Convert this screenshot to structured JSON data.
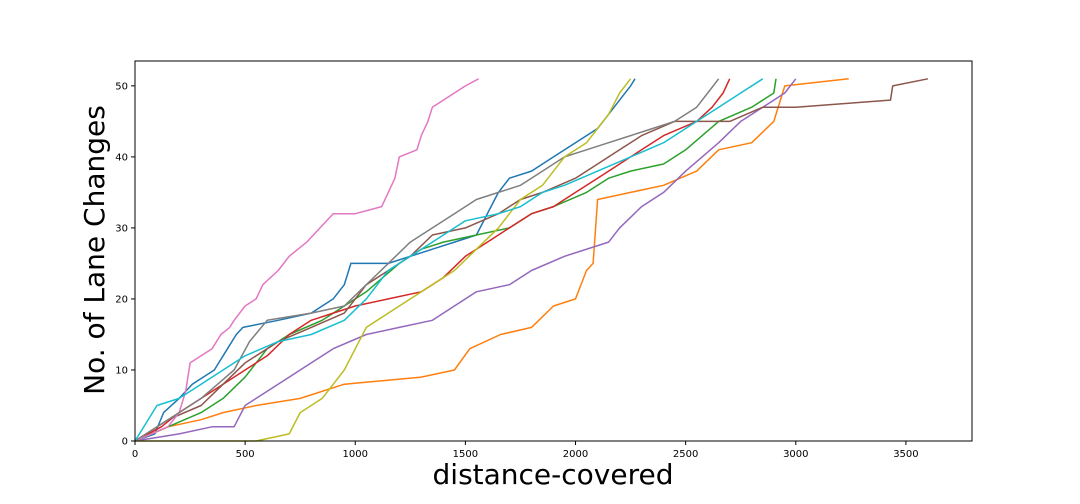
{
  "chart_data": {
    "type": "line",
    "title": "",
    "xlabel": "distance-covered",
    "ylabel": "No. of Lane Changes",
    "xlim": [
      0,
      3800
    ],
    "ylim": [
      0,
      53.5
    ],
    "xticks": [
      0,
      500,
      1000,
      1500,
      2000,
      2500,
      3000,
      3500
    ],
    "yticks": [
      0,
      10,
      20,
      30,
      40,
      50
    ],
    "grid": false,
    "legend": "none",
    "series": [
      {
        "color": "#1f77b4",
        "points": [
          [
            0,
            0
          ],
          [
            90,
            1
          ],
          [
            130,
            4
          ],
          [
            200,
            6
          ],
          [
            260,
            8
          ],
          [
            310,
            9
          ],
          [
            360,
            10
          ],
          [
            420,
            13
          ],
          [
            460,
            15
          ],
          [
            490,
            16
          ],
          [
            650,
            17
          ],
          [
            800,
            18
          ],
          [
            900,
            20
          ],
          [
            950,
            22
          ],
          [
            980,
            25
          ],
          [
            1150,
            25
          ],
          [
            1250,
            26
          ],
          [
            1350,
            27
          ],
          [
            1450,
            28
          ],
          [
            1550,
            29
          ],
          [
            1650,
            35
          ],
          [
            1700,
            37
          ],
          [
            1800,
            38
          ],
          [
            1900,
            40
          ],
          [
            2000,
            42
          ],
          [
            2100,
            44
          ],
          [
            2150,
            46
          ],
          [
            2200,
            48
          ],
          [
            2250,
            50
          ],
          [
            2270,
            51
          ]
        ]
      },
      {
        "color": "#ff7f0e",
        "points": [
          [
            0,
            0
          ],
          [
            150,
            2
          ],
          [
            300,
            3
          ],
          [
            400,
            4
          ],
          [
            550,
            5
          ],
          [
            750,
            6
          ],
          [
            950,
            8
          ],
          [
            1300,
            9
          ],
          [
            1450,
            10
          ],
          [
            1520,
            13
          ],
          [
            1660,
            15
          ],
          [
            1800,
            16
          ],
          [
            1900,
            19
          ],
          [
            2000,
            20
          ],
          [
            2050,
            24
          ],
          [
            2080,
            25
          ],
          [
            2100,
            34
          ],
          [
            2250,
            35
          ],
          [
            2400,
            36
          ],
          [
            2550,
            38
          ],
          [
            2650,
            41
          ],
          [
            2800,
            42
          ],
          [
            2900,
            45
          ],
          [
            2950,
            50
          ],
          [
            3240,
            51
          ]
        ]
      },
      {
        "color": "#2ca02c",
        "points": [
          [
            0,
            0
          ],
          [
            150,
            2
          ],
          [
            300,
            4
          ],
          [
            400,
            6
          ],
          [
            500,
            9
          ],
          [
            600,
            13
          ],
          [
            700,
            15
          ],
          [
            850,
            17
          ],
          [
            950,
            19
          ],
          [
            1050,
            21
          ],
          [
            1200,
            25
          ],
          [
            1300,
            27
          ],
          [
            1400,
            28
          ],
          [
            1550,
            29
          ],
          [
            1700,
            30
          ],
          [
            1800,
            32
          ],
          [
            1900,
            33
          ],
          [
            2050,
            35
          ],
          [
            2150,
            37
          ],
          [
            2250,
            38
          ],
          [
            2400,
            39
          ],
          [
            2500,
            41
          ],
          [
            2650,
            45
          ],
          [
            2800,
            47
          ],
          [
            2900,
            49
          ],
          [
            2910,
            51
          ]
        ]
      },
      {
        "color": "#d62728",
        "points": [
          [
            0,
            0
          ],
          [
            120,
            2
          ],
          [
            200,
            4
          ],
          [
            300,
            6
          ],
          [
            400,
            8
          ],
          [
            500,
            10
          ],
          [
            600,
            12
          ],
          [
            700,
            15
          ],
          [
            800,
            17
          ],
          [
            900,
            18
          ],
          [
            1000,
            19
          ],
          [
            1150,
            20
          ],
          [
            1300,
            21
          ],
          [
            1400,
            23
          ],
          [
            1500,
            26
          ],
          [
            1600,
            28
          ],
          [
            1700,
            30
          ],
          [
            1800,
            32
          ],
          [
            1900,
            33
          ],
          [
            2000,
            35
          ],
          [
            2100,
            37
          ],
          [
            2200,
            39
          ],
          [
            2300,
            41
          ],
          [
            2400,
            43
          ],
          [
            2550,
            45
          ],
          [
            2620,
            47
          ],
          [
            2670,
            49
          ],
          [
            2700,
            51
          ]
        ]
      },
      {
        "color": "#9467bd",
        "points": [
          [
            0,
            0
          ],
          [
            200,
            1
          ],
          [
            350,
            2
          ],
          [
            450,
            2
          ],
          [
            500,
            5
          ],
          [
            600,
            7
          ],
          [
            700,
            9
          ],
          [
            800,
            11
          ],
          [
            900,
            13
          ],
          [
            1050,
            15
          ],
          [
            1200,
            16
          ],
          [
            1350,
            17
          ],
          [
            1450,
            19
          ],
          [
            1550,
            21
          ],
          [
            1700,
            22
          ],
          [
            1800,
            24
          ],
          [
            1950,
            26
          ],
          [
            2150,
            28
          ],
          [
            2200,
            30
          ],
          [
            2300,
            33
          ],
          [
            2400,
            35
          ],
          [
            2500,
            38
          ],
          [
            2650,
            42
          ],
          [
            2750,
            45
          ],
          [
            2850,
            47
          ],
          [
            2950,
            49
          ],
          [
            3000,
            51
          ]
        ]
      },
      {
        "color": "#8c564b",
        "points": [
          [
            0,
            0
          ],
          [
            150,
            3
          ],
          [
            300,
            5
          ],
          [
            400,
            8
          ],
          [
            500,
            11
          ],
          [
            650,
            14
          ],
          [
            800,
            16
          ],
          [
            950,
            18
          ],
          [
            1050,
            22
          ],
          [
            1150,
            24
          ],
          [
            1250,
            26
          ],
          [
            1350,
            29
          ],
          [
            1500,
            30
          ],
          [
            1650,
            32
          ],
          [
            1750,
            34
          ],
          [
            1850,
            35
          ],
          [
            2000,
            37
          ],
          [
            2100,
            39
          ],
          [
            2200,
            41
          ],
          [
            2300,
            43
          ],
          [
            2450,
            45
          ],
          [
            2700,
            45
          ],
          [
            2850,
            47
          ],
          [
            3000,
            47
          ],
          [
            3430,
            48
          ],
          [
            3440,
            50
          ],
          [
            3600,
            51
          ]
        ]
      },
      {
        "color": "#e377c2",
        "points": [
          [
            0,
            0
          ],
          [
            150,
            2
          ],
          [
            200,
            4
          ],
          [
            230,
            7
          ],
          [
            250,
            11
          ],
          [
            300,
            12
          ],
          [
            350,
            13
          ],
          [
            390,
            15
          ],
          [
            430,
            16
          ],
          [
            450,
            17
          ],
          [
            500,
            19
          ],
          [
            550,
            20
          ],
          [
            580,
            22
          ],
          [
            650,
            24
          ],
          [
            700,
            26
          ],
          [
            780,
            28
          ],
          [
            840,
            30
          ],
          [
            900,
            32
          ],
          [
            1000,
            32
          ],
          [
            1120,
            33
          ],
          [
            1150,
            35
          ],
          [
            1180,
            37
          ],
          [
            1200,
            40
          ],
          [
            1280,
            41
          ],
          [
            1300,
            43
          ],
          [
            1330,
            45
          ],
          [
            1350,
            47
          ],
          [
            1400,
            48
          ],
          [
            1450,
            49
          ],
          [
            1500,
            50
          ],
          [
            1560,
            51
          ]
        ]
      },
      {
        "color": "#7f7f7f",
        "points": [
          [
            0,
            0
          ],
          [
            150,
            3
          ],
          [
            300,
            6
          ],
          [
            450,
            10
          ],
          [
            520,
            14
          ],
          [
            600,
            17
          ],
          [
            800,
            18
          ],
          [
            950,
            19
          ],
          [
            1050,
            22
          ],
          [
            1150,
            25
          ],
          [
            1250,
            28
          ],
          [
            1350,
            30
          ],
          [
            1450,
            32
          ],
          [
            1550,
            34
          ],
          [
            1650,
            35
          ],
          [
            1750,
            36
          ],
          [
            1850,
            38
          ],
          [
            1950,
            40
          ],
          [
            2050,
            41
          ],
          [
            2150,
            42
          ],
          [
            2250,
            43
          ],
          [
            2350,
            44
          ],
          [
            2450,
            45
          ],
          [
            2550,
            47
          ],
          [
            2600,
            49
          ],
          [
            2650,
            51
          ]
        ]
      },
      {
        "color": "#bcbd22",
        "points": [
          [
            0,
            0
          ],
          [
            150,
            0
          ],
          [
            250,
            0
          ],
          [
            400,
            0
          ],
          [
            550,
            0
          ],
          [
            700,
            1
          ],
          [
            750,
            4
          ],
          [
            850,
            6
          ],
          [
            950,
            10
          ],
          [
            1000,
            13
          ],
          [
            1050,
            16
          ],
          [
            1150,
            18
          ],
          [
            1250,
            20
          ],
          [
            1350,
            22
          ],
          [
            1450,
            24
          ],
          [
            1550,
            27
          ],
          [
            1650,
            30
          ],
          [
            1700,
            32
          ],
          [
            1750,
            34
          ],
          [
            1850,
            36
          ],
          [
            1950,
            40
          ],
          [
            2050,
            42
          ],
          [
            2100,
            44
          ],
          [
            2150,
            46
          ],
          [
            2200,
            49
          ],
          [
            2250,
            51
          ]
        ]
      },
      {
        "color": "#17becf",
        "points": [
          [
            0,
            0
          ],
          [
            100,
            5
          ],
          [
            200,
            6
          ],
          [
            300,
            8
          ],
          [
            400,
            10
          ],
          [
            500,
            12
          ],
          [
            650,
            14
          ],
          [
            800,
            15
          ],
          [
            950,
            17
          ],
          [
            1050,
            20
          ],
          [
            1150,
            24
          ],
          [
            1300,
            27
          ],
          [
            1400,
            29
          ],
          [
            1500,
            31
          ],
          [
            1650,
            32
          ],
          [
            1750,
            33
          ],
          [
            1850,
            35
          ],
          [
            1950,
            36
          ],
          [
            2100,
            38
          ],
          [
            2250,
            40
          ],
          [
            2400,
            42
          ],
          [
            2550,
            45
          ],
          [
            2650,
            47
          ],
          [
            2750,
            49
          ],
          [
            2850,
            51
          ]
        ]
      }
    ]
  }
}
